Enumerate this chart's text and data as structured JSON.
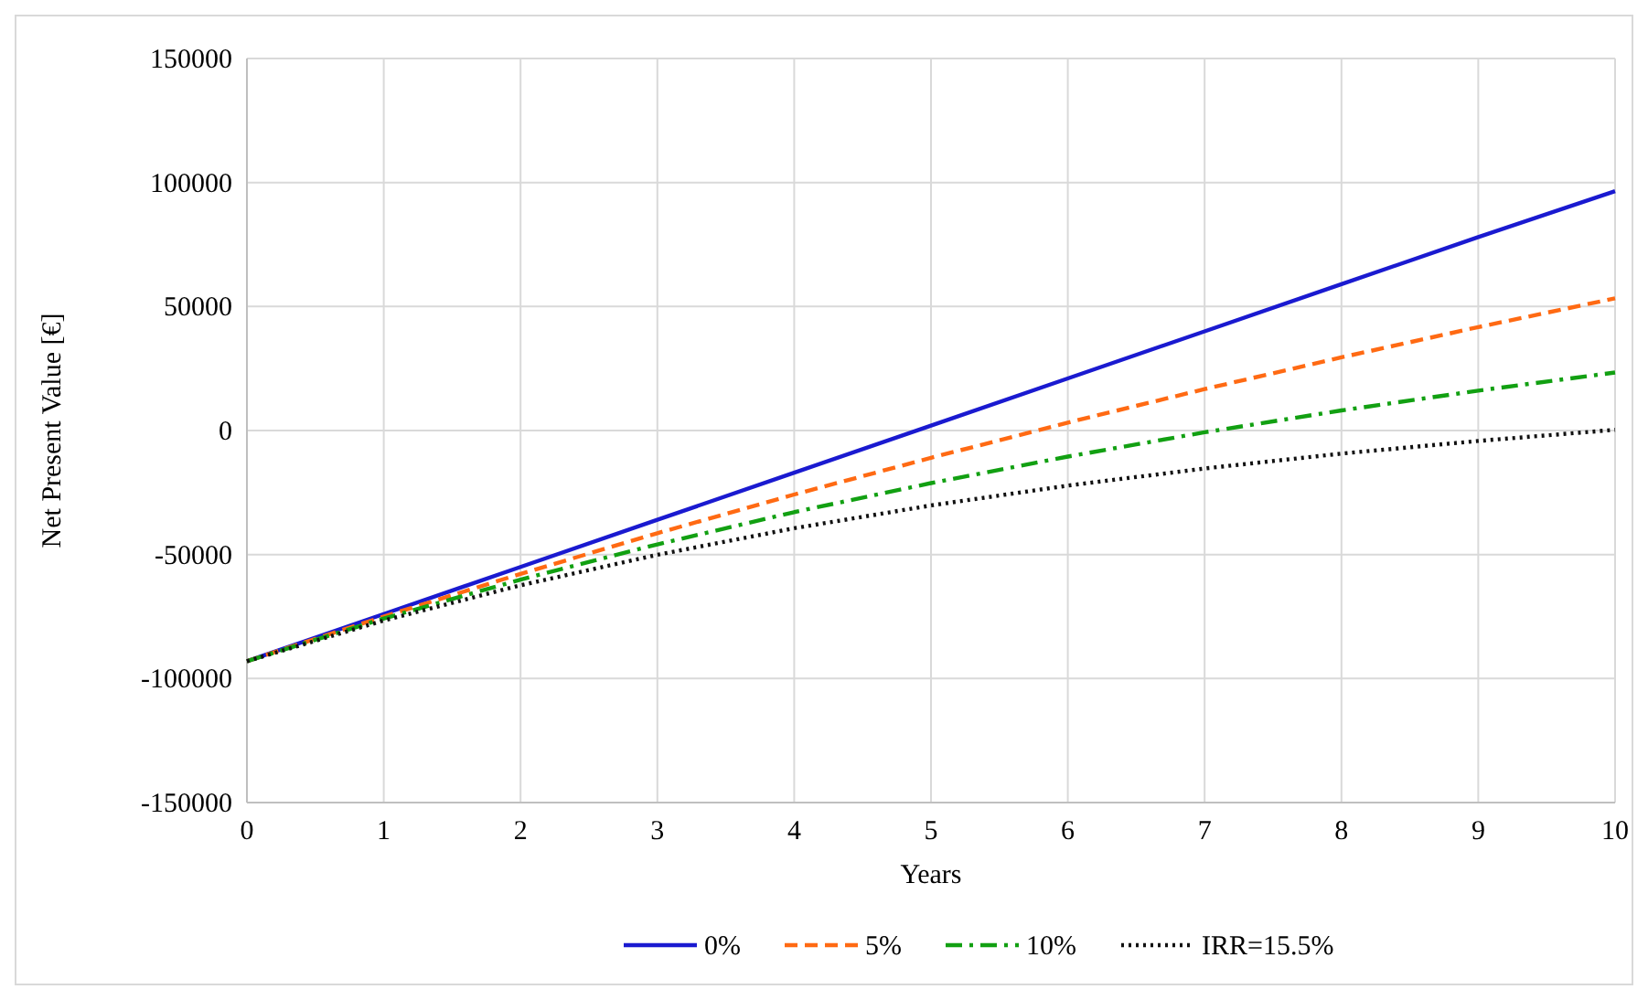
{
  "chart_data": {
    "type": "line",
    "xlabel": "Years",
    "ylabel": "Net Present Value [€]",
    "x": [
      0,
      1,
      2,
      3,
      4,
      5,
      6,
      7,
      8,
      9,
      10
    ],
    "xlim": [
      0,
      10
    ],
    "xticks": [
      0,
      1,
      2,
      3,
      4,
      5,
      6,
      7,
      8,
      9,
      10
    ],
    "ylim": [
      -150000,
      150000
    ],
    "yticks": [
      -150000,
      -100000,
      -50000,
      0,
      50000,
      100000,
      150000
    ],
    "grid": true,
    "legend": "bottom",
    "marker": "none",
    "series": [
      {
        "name": "0%",
        "color": "#1a1ad0",
        "line_style": "solid",
        "values": [
          -93000,
          -74000,
          -55000,
          -36000,
          -17000,
          2000,
          21000,
          40000,
          59000,
          78000,
          96500
        ]
      },
      {
        "name": "5%",
        "color": "#ff6a13",
        "line_style": "dashed",
        "values": [
          -93000,
          -75000,
          -57800,
          -41400,
          -25800,
          -11000,
          3200,
          16700,
          29500,
          41700,
          53300
        ]
      },
      {
        "name": "10%",
        "color": "#12a012",
        "line_style": "dashdot",
        "values": [
          -93000,
          -75800,
          -60100,
          -45900,
          -32900,
          -21200,
          -10500,
          -700,
          8100,
          16100,
          23400
        ]
      },
      {
        "name": "IRR=15.5%",
        "color": "#111111",
        "line_style": "dotted",
        "values": [
          -93000,
          -76600,
          -62400,
          -50100,
          -39400,
          -30200,
          -22200,
          -15300,
          -9300,
          -4200,
          300
        ]
      }
    ]
  }
}
